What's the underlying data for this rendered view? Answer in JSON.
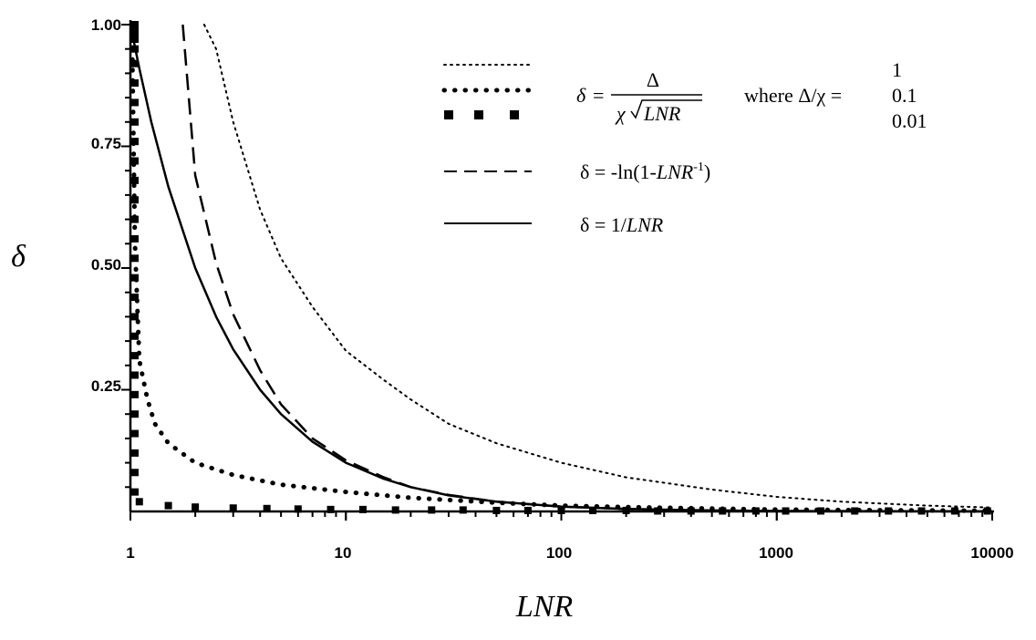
{
  "chart_data": {
    "type": "line",
    "xlabel": "LNR",
    "ylabel": "δ",
    "x_scale": "log",
    "xlim": [
      1,
      10000
    ],
    "ylim": [
      0,
      1.0
    ],
    "x_ticks": [
      "1",
      "10",
      "100",
      "1000",
      "10000"
    ],
    "y_ticks": [
      "1.00",
      "0.75",
      "0.50",
      "0.25"
    ],
    "grid": false,
    "legend_position": "top-right",
    "legend": {
      "formula_delta": "δ",
      "formula_numerator": "Δ",
      "formula_chi": "χ",
      "formula_radicand": "LNR",
      "where_text": "where Δ/χ =",
      "where_values": [
        "1",
        "0.1",
        "0.01"
      ],
      "log_formula_prefix": "δ = -ln(1-",
      "log_formula_var": "LNR",
      "log_formula_exp": "-1",
      "log_formula_suffix": ")",
      "inv_formula_prefix": "δ = 1/",
      "inv_formula_var": "LNR"
    },
    "series": [
      {
        "ratio": 1,
        "style": "fine-dotted",
        "x": [
          2.2,
          2.5,
          3,
          4,
          5,
          7,
          10,
          15,
          20,
          30,
          50,
          100,
          200,
          500,
          1000,
          2000,
          5000,
          10000
        ],
        "y": [
          1.0,
          0.95,
          0.8,
          0.62,
          0.52,
          0.42,
          0.33,
          0.27,
          0.23,
          0.18,
          0.14,
          0.1,
          0.07,
          0.045,
          0.03,
          0.02,
          0.012,
          0.008
        ]
      },
      {
        "ratio": 0.1,
        "style": "coarse-dotted",
        "x": [
          1.02,
          1.05,
          1.1,
          1.2,
          1.3,
          1.5,
          2,
          3,
          5,
          10,
          20,
          50,
          100,
          200,
          500,
          1000,
          2000,
          5000,
          10000
        ],
        "y": [
          0.95,
          0.55,
          0.31,
          0.23,
          0.18,
          0.14,
          0.1,
          0.075,
          0.055,
          0.04,
          0.028,
          0.018,
          0.012,
          0.009,
          0.006,
          0.004,
          0.003,
          0.002,
          0.0015
        ]
      },
      {
        "ratio": 0.01,
        "style": "squares",
        "x": [
          1.05,
          1.05,
          1.05,
          1.05,
          1.05,
          1.05,
          1.05,
          1.05,
          1.05,
          1.05,
          1.05,
          1.05,
          1.05,
          1.05,
          1.05,
          1.05,
          1.05,
          1.05,
          1.05,
          1.05,
          1.05,
          1.05,
          1.05,
          1.05,
          1.05,
          1.05,
          1.05,
          1.05,
          1.1,
          1.5,
          2,
          3,
          4.3,
          6,
          8.5,
          12,
          17,
          25,
          35,
          50,
          70,
          100,
          140,
          200,
          280,
          400,
          560,
          800,
          1100,
          1600,
          2300,
          3300,
          4700,
          6700,
          9500
        ],
        "y": [
          0.04,
          0.08,
          0.12,
          0.16,
          0.2,
          0.24,
          0.28,
          0.32,
          0.36,
          0.4,
          0.44,
          0.48,
          0.52,
          0.56,
          0.6,
          0.64,
          0.68,
          0.72,
          0.76,
          0.8,
          0.84,
          0.88,
          0.92,
          0.95,
          0.97,
          0.98,
          0.99,
          1.0,
          0.02,
          0.012,
          0.009,
          0.007,
          0.006,
          0.005,
          0.004,
          0.004,
          0.003,
          0.003,
          0.003,
          0.002,
          0.002,
          0.002,
          0.002,
          0.002,
          0.001,
          0.001,
          0.001,
          0.001,
          0.001,
          0.001,
          0.001,
          0.001,
          0.001,
          0.001,
          0.001
        ]
      },
      {
        "style": "dashed",
        "x": [
          1.75,
          2,
          2.5,
          3,
          4,
          5,
          7,
          10,
          15,
          20,
          30,
          50,
          100,
          200,
          500,
          1000,
          10000
        ],
        "y": [
          1.0,
          0.69,
          0.51,
          0.405,
          0.29,
          0.22,
          0.15,
          0.105,
          0.07,
          0.05,
          0.034,
          0.02,
          0.01,
          0.005,
          0.002,
          0.001,
          0.0001
        ]
      },
      {
        "style": "solid",
        "x": [
          1.0,
          1.1,
          1.25,
          1.5,
          2,
          2.5,
          3,
          4,
          5,
          7,
          10,
          15,
          20,
          30,
          50,
          100,
          200,
          500,
          1000,
          10000
        ],
        "y": [
          1.0,
          0.91,
          0.8,
          0.667,
          0.5,
          0.4,
          0.333,
          0.25,
          0.2,
          0.143,
          0.1,
          0.067,
          0.05,
          0.033,
          0.02,
          0.01,
          0.005,
          0.002,
          0.001,
          0.0001
        ]
      }
    ]
  }
}
